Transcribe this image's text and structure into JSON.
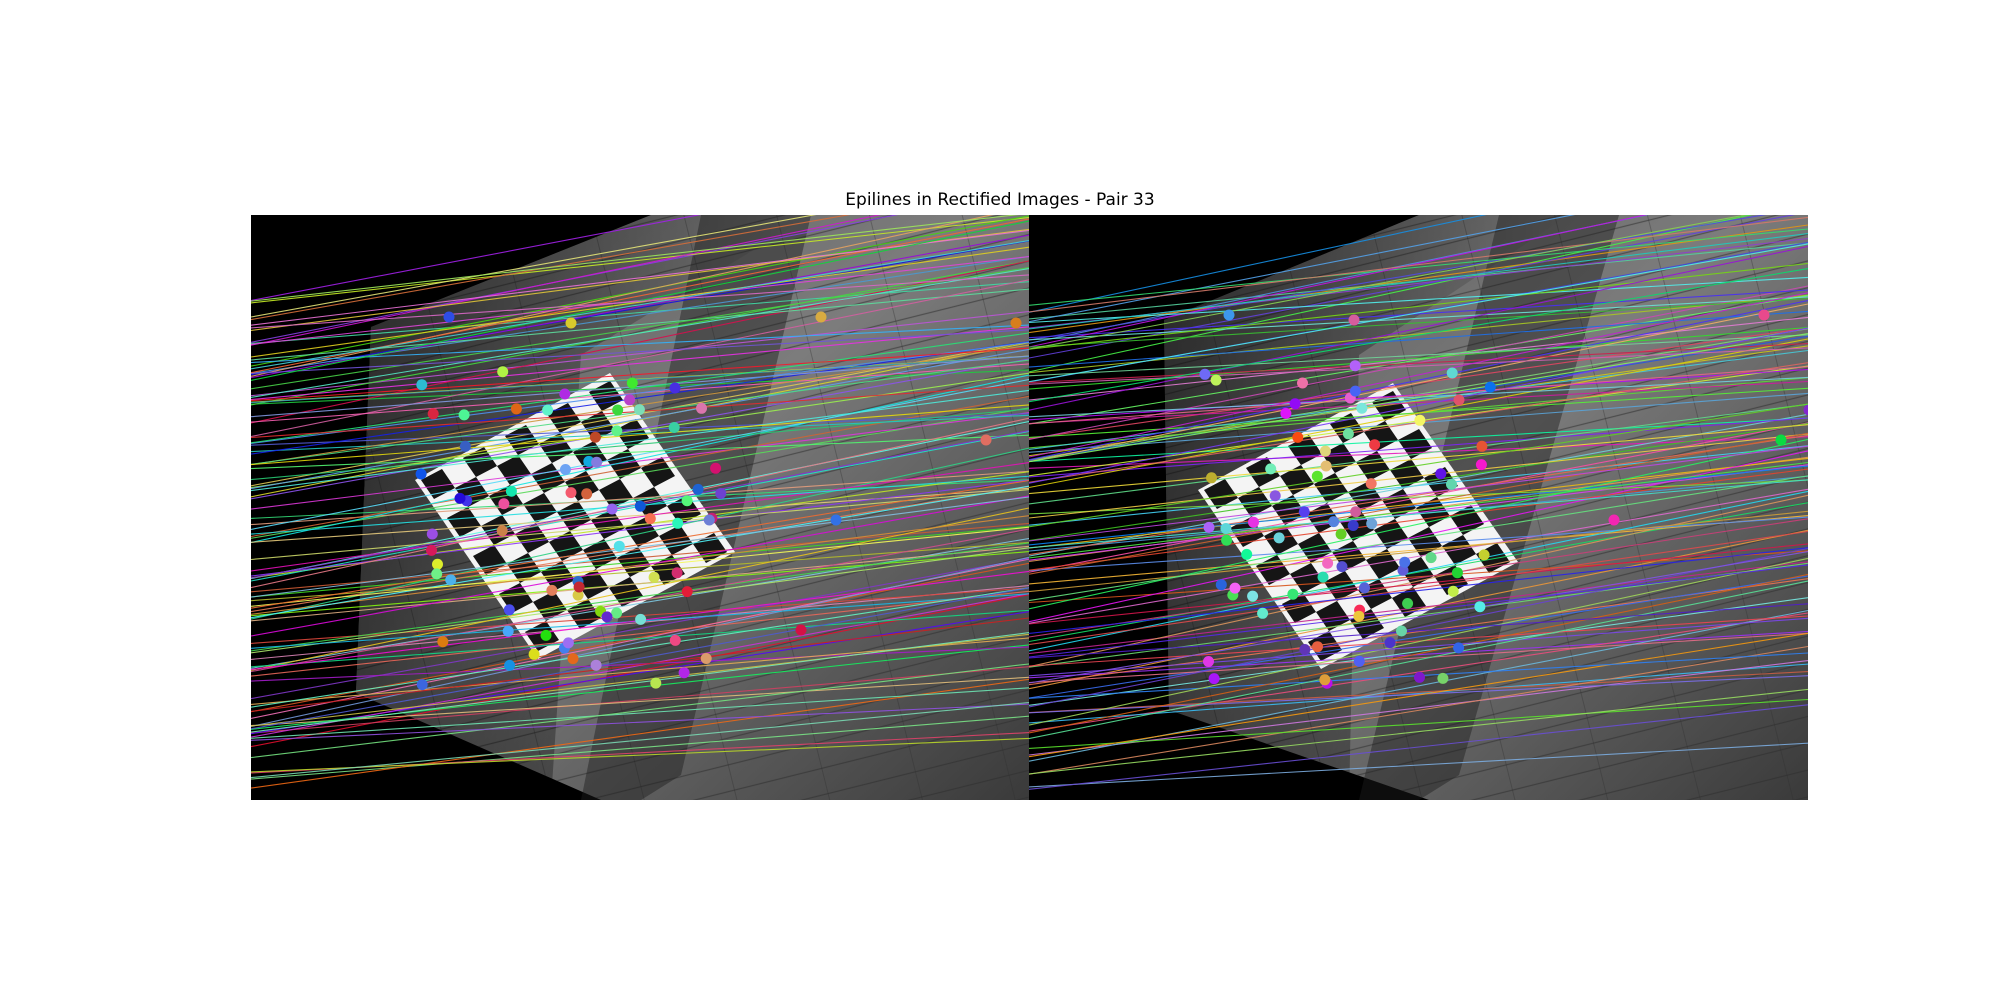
{
  "figure": {
    "title": "Epilines in Rectified Images - Pair 33"
  },
  "panels": [
    {
      "name": "left-rectified-image",
      "pane_label": ""
    },
    {
      "name": "right-rectified-image",
      "pane_label": ""
    }
  ],
  "colors": {
    "background": "#ffffff",
    "image_void": "#000000",
    "floor_dark": "#2f2f2f",
    "floor_light": "#8a8a8a",
    "board_white": "#f4f4f4",
    "board_black": "#151515"
  },
  "overlay": {
    "point_marker": "filled-circle",
    "line_style": "thin-colored-epiline",
    "seed": 33
  }
}
